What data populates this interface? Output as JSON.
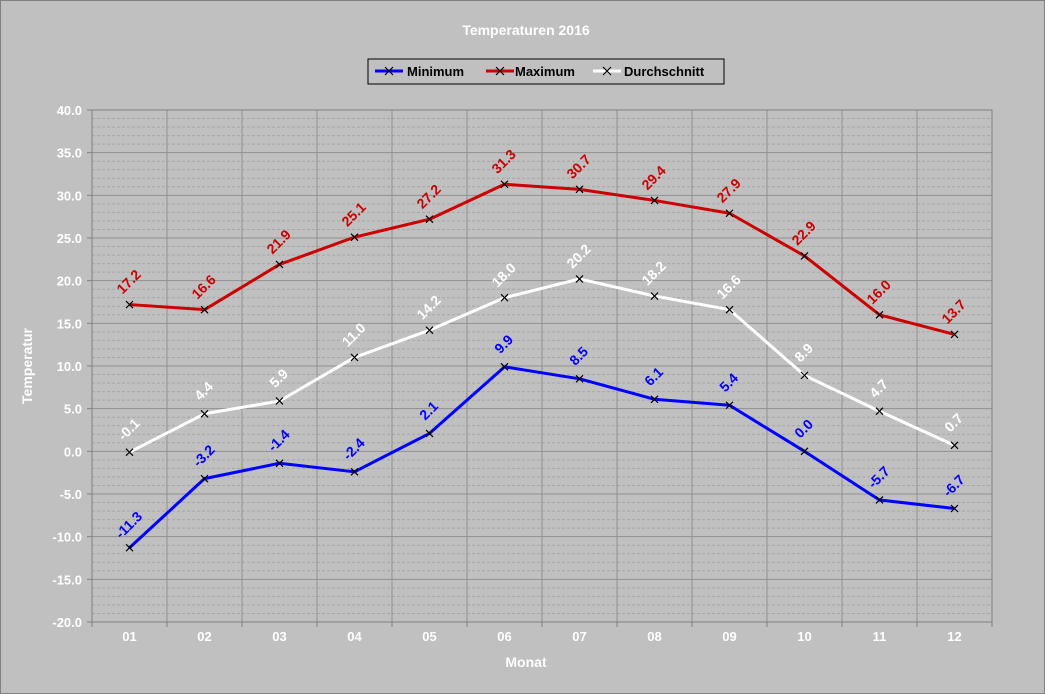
{
  "chart_data": {
    "type": "line",
    "title": "Temperaturen 2016",
    "xlabel": "Monat",
    "ylabel": "Temperatur",
    "categories": [
      "01",
      "02",
      "03",
      "04",
      "05",
      "06",
      "07",
      "08",
      "09",
      "10",
      "11",
      "12"
    ],
    "ylim": [
      -20,
      40
    ],
    "y_ticks": [
      "40.0",
      "35.0",
      "30.0",
      "25.0",
      "20.0",
      "15.0",
      "10.0",
      "5.0",
      "0.0",
      "-5.0",
      "-10.0",
      "-15.0",
      "-20.0"
    ],
    "grid": true,
    "legend_position": "top-center",
    "background_color": "#c0c0c0",
    "series": [
      {
        "name": "Minimum",
        "color": "#0000ff",
        "values": [
          -11.3,
          -3.2,
          -1.4,
          -2.4,
          2.1,
          9.9,
          8.5,
          6.1,
          5.4,
          0.0,
          -5.7,
          -6.7
        ],
        "labels": [
          "-11.3",
          "-3.2",
          "-1.4",
          "-2.4",
          "2.1",
          "9.9",
          "8.5",
          "6.1",
          "5.4",
          "0.0",
          "-5.7",
          "-6.7"
        ]
      },
      {
        "name": "Maximum",
        "color": "#cc0000",
        "values": [
          17.2,
          16.6,
          21.9,
          25.1,
          27.2,
          31.3,
          30.7,
          29.4,
          27.9,
          22.9,
          16.0,
          13.7
        ],
        "labels": [
          "17.2",
          "16.6",
          "21.9",
          "25.1",
          "27.2",
          "31.3",
          "30.7",
          "29.4",
          "27.9",
          "22.9",
          "16.0",
          "13.7"
        ]
      },
      {
        "name": "Durchschnitt",
        "color": "#ffffff",
        "values": [
          -0.1,
          4.4,
          5.9,
          11.0,
          14.2,
          18.0,
          20.2,
          18.2,
          16.6,
          8.9,
          4.7,
          0.7
        ],
        "labels": [
          "-0.1",
          "4.4",
          "5.9",
          "11.0",
          "14.2",
          "18.0",
          "20.2",
          "18.2",
          "16.6",
          "8.9",
          "4.7",
          "0.7"
        ]
      }
    ]
  }
}
